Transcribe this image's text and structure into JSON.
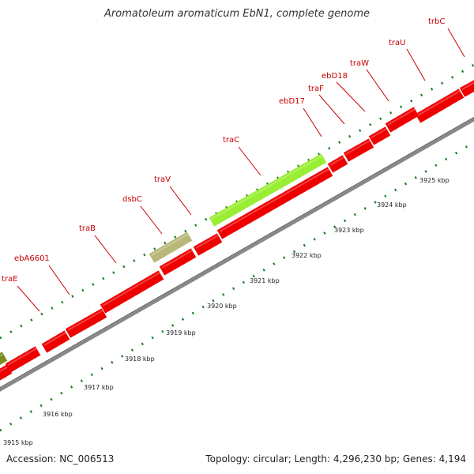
{
  "title": "Aromatoleum aromaticum EbN1, complete genome",
  "accession": "Accession: NC_006513",
  "summary": "Topology: circular; Length: 4,296,230 bp; Genes: 4,194",
  "colors": {
    "gene": "#ee0000",
    "highlight_gene": "#99ee33",
    "muted_gene": "#b8b878",
    "dark_gene": "#7a8a20",
    "backbone": "#888888",
    "tick": "#1a7a1a",
    "label": "#cc0000"
  },
  "genes": [
    {
      "name": "traE"
    },
    {
      "name": "ebA6601"
    },
    {
      "name": "traB"
    },
    {
      "name": "dsbC"
    },
    {
      "name": "traV"
    },
    {
      "name": "traC"
    },
    {
      "name": "ebD17"
    },
    {
      "name": "traF"
    },
    {
      "name": "ebD18"
    },
    {
      "name": "traW"
    },
    {
      "name": "traU"
    },
    {
      "name": "trbC"
    }
  ],
  "scale_labels": [
    "3915 kbp",
    "3916 kbp",
    "3917 kbp",
    "3918 kbp",
    "3919 kbp",
    "3920 kbp",
    "3921 kbp",
    "3922 kbp",
    "3923 kbp",
    "3924 kbp",
    "3925 kbp"
  ]
}
